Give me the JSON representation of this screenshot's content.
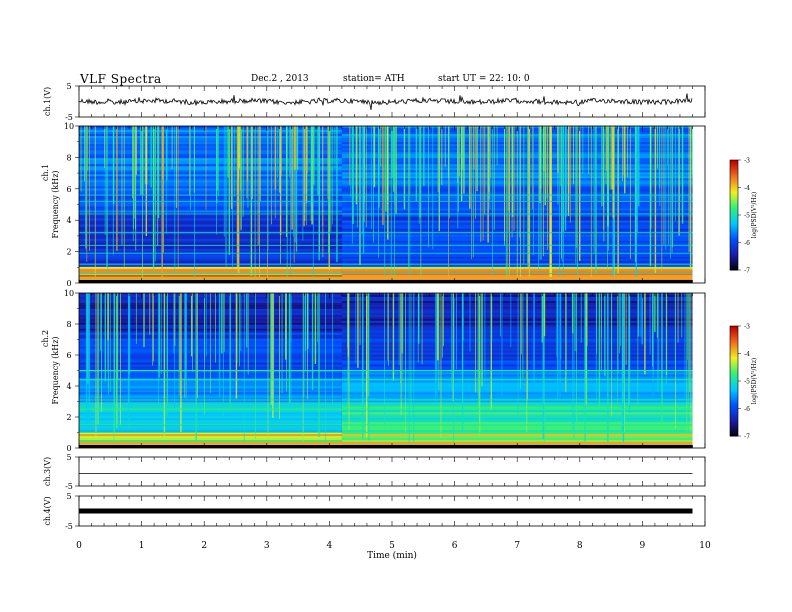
{
  "header": {
    "title": "VLF  Spectra",
    "date": "Dec.2  , 2013",
    "station": "station= ATH",
    "start": "start  UT  =   22: 10: 0"
  },
  "chart_data": [
    {
      "type": "line",
      "id": "ch1-waveform",
      "ylabel": "ch.1(V)",
      "ylim": [
        -5,
        5
      ],
      "yticks": [
        "5",
        "-5"
      ],
      "x_extent_min": 9.8,
      "signal": "noisy waveform around 0 V (approx. -1 to +1 V)"
    },
    {
      "type": "heatmap",
      "id": "ch1-spectrogram",
      "ylabel": "Frequency  (kHz)",
      "channel": "ch.1",
      "ylim": [
        0,
        10
      ],
      "yticks": [
        "0",
        "2",
        "4",
        "6",
        "8",
        "10"
      ],
      "x_extent_min": 9.8,
      "colorbar": {
        "label": "log(PSD(V²/Hz)",
        "range": [
          -7,
          -3
        ],
        "ticks": [
          "-3",
          "-4",
          "-5",
          "-6",
          "-7"
        ]
      },
      "level_boundary_min": 4.2
    },
    {
      "type": "heatmap",
      "id": "ch2-spectrogram",
      "ylabel": "Frequency  (kHz)",
      "channel": "ch.2",
      "ylim": [
        0,
        10
      ],
      "yticks": [
        "0",
        "2",
        "4",
        "6",
        "8",
        "10"
      ],
      "x_extent_min": 9.8,
      "colorbar": {
        "label": "log(PSD(V²/Hz)",
        "range": [
          -7,
          -3
        ],
        "ticks": [
          "-3",
          "-4",
          "-5",
          "-6",
          "-7"
        ]
      },
      "level_boundary_min": 4.2
    },
    {
      "type": "line",
      "id": "ch3-waveform",
      "ylabel": "ch.3(V)",
      "ylim": [
        -5,
        5
      ],
      "yticks": [
        "5",
        "-5"
      ],
      "x_extent_min": 9.8,
      "signal": "flat line near 0 V"
    },
    {
      "type": "line",
      "id": "ch4-waveform",
      "ylabel": "ch.4(V)",
      "ylim": [
        -5,
        5
      ],
      "yticks": [
        "5",
        "-5"
      ],
      "x_extent_min": 9.8,
      "signal": "thick flat band near 0 V"
    }
  ],
  "x_axis": {
    "label": "Time  (min)",
    "range": [
      0,
      10
    ],
    "ticks": [
      "0",
      "1",
      "2",
      "3",
      "4",
      "5",
      "6",
      "7",
      "8",
      "9",
      "10"
    ]
  },
  "colors": {
    "colormap": [
      "#000000",
      "#1a1aa6",
      "#0050ff",
      "#00c8ff",
      "#30f07a",
      "#f0f020",
      "#f07020",
      "#c00000",
      "#ffffff"
    ]
  }
}
